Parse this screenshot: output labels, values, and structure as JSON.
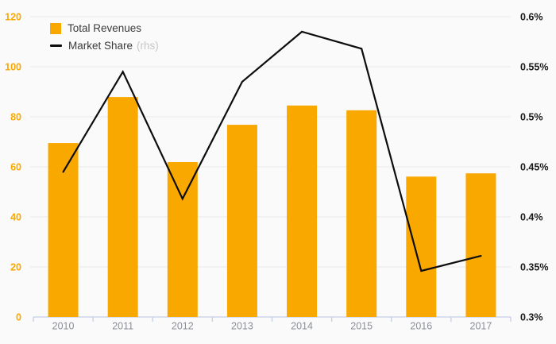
{
  "chart_data": {
    "type": "bar",
    "subtype": "bar-line-combo",
    "categories": [
      "2010",
      "2011",
      "2012",
      "2013",
      "2014",
      "2015",
      "2016",
      "2017"
    ],
    "series": [
      {
        "name": "Total Revenues",
        "type": "bar",
        "axis": "left",
        "color": "#F9A800",
        "values": [
          69.5,
          87.9,
          61.9,
          76.8,
          84.5,
          82.6,
          56.1,
          57.4
        ]
      },
      {
        "name": "Market Share",
        "type": "line",
        "axis": "right",
        "color": "#0d0d0d",
        "unit": "%",
        "values": [
          0.445,
          0.545,
          0.418,
          0.535,
          0.585,
          0.568,
          0.346,
          0.361
        ]
      }
    ],
    "left_axis": {
      "min": 0,
      "max": 120,
      "step": 20,
      "tick_labels": [
        "0",
        "20",
        "40",
        "60",
        "80",
        "100",
        "120"
      ],
      "label_color": "#F9A800"
    },
    "right_axis": {
      "min": 0.3,
      "max": 0.6,
      "step": 0.05,
      "tick_labels": [
        "0.3%",
        "0.35%",
        "0.4%",
        "0.45%",
        "0.5%",
        "0.55%",
        "0.6%"
      ],
      "label_color": "#1a1a1a"
    },
    "legend": [
      {
        "label": "Total Revenues",
        "swatch": "square",
        "color": "#F9A800"
      },
      {
        "label": "Market Share",
        "suffix": "(rhs)",
        "swatch": "line",
        "color": "#0d0d0d"
      }
    ],
    "grid": true,
    "legend_position": "top-left-inside",
    "colors": {
      "background": "#fafafa",
      "gridline": "#e9e9e9",
      "x_axis_line": "#c5cfe6",
      "x_label_color": "#8b8f98"
    }
  }
}
